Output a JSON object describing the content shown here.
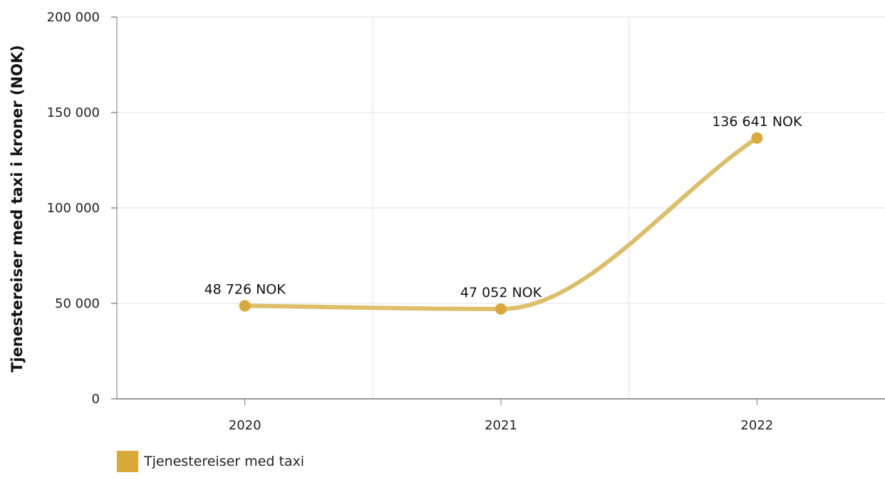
{
  "chart_data": {
    "type": "line",
    "title": "",
    "xlabel": "",
    "ylabel": "Tjenestereiser med taxi i kroner (NOK)",
    "categories": [
      "2020",
      "2021",
      "2022"
    ],
    "series": [
      {
        "name": "Tjenestereiser med taxi",
        "values": [
          48726,
          47052,
          136641
        ],
        "data_labels": [
          "48 726 NOK",
          "47 052 NOK",
          "136 641 NOK"
        ],
        "color": "#D9AA3A"
      }
    ],
    "ylim": [
      0,
      200000
    ],
    "yticks": [
      0,
      50000,
      100000,
      150000,
      200000
    ],
    "ytick_labels": [
      "0",
      "50 000",
      "100 000",
      "150 000",
      "200 000"
    ],
    "grid": true,
    "legend": "bottom-left",
    "line_color": "#DDBE6A"
  }
}
